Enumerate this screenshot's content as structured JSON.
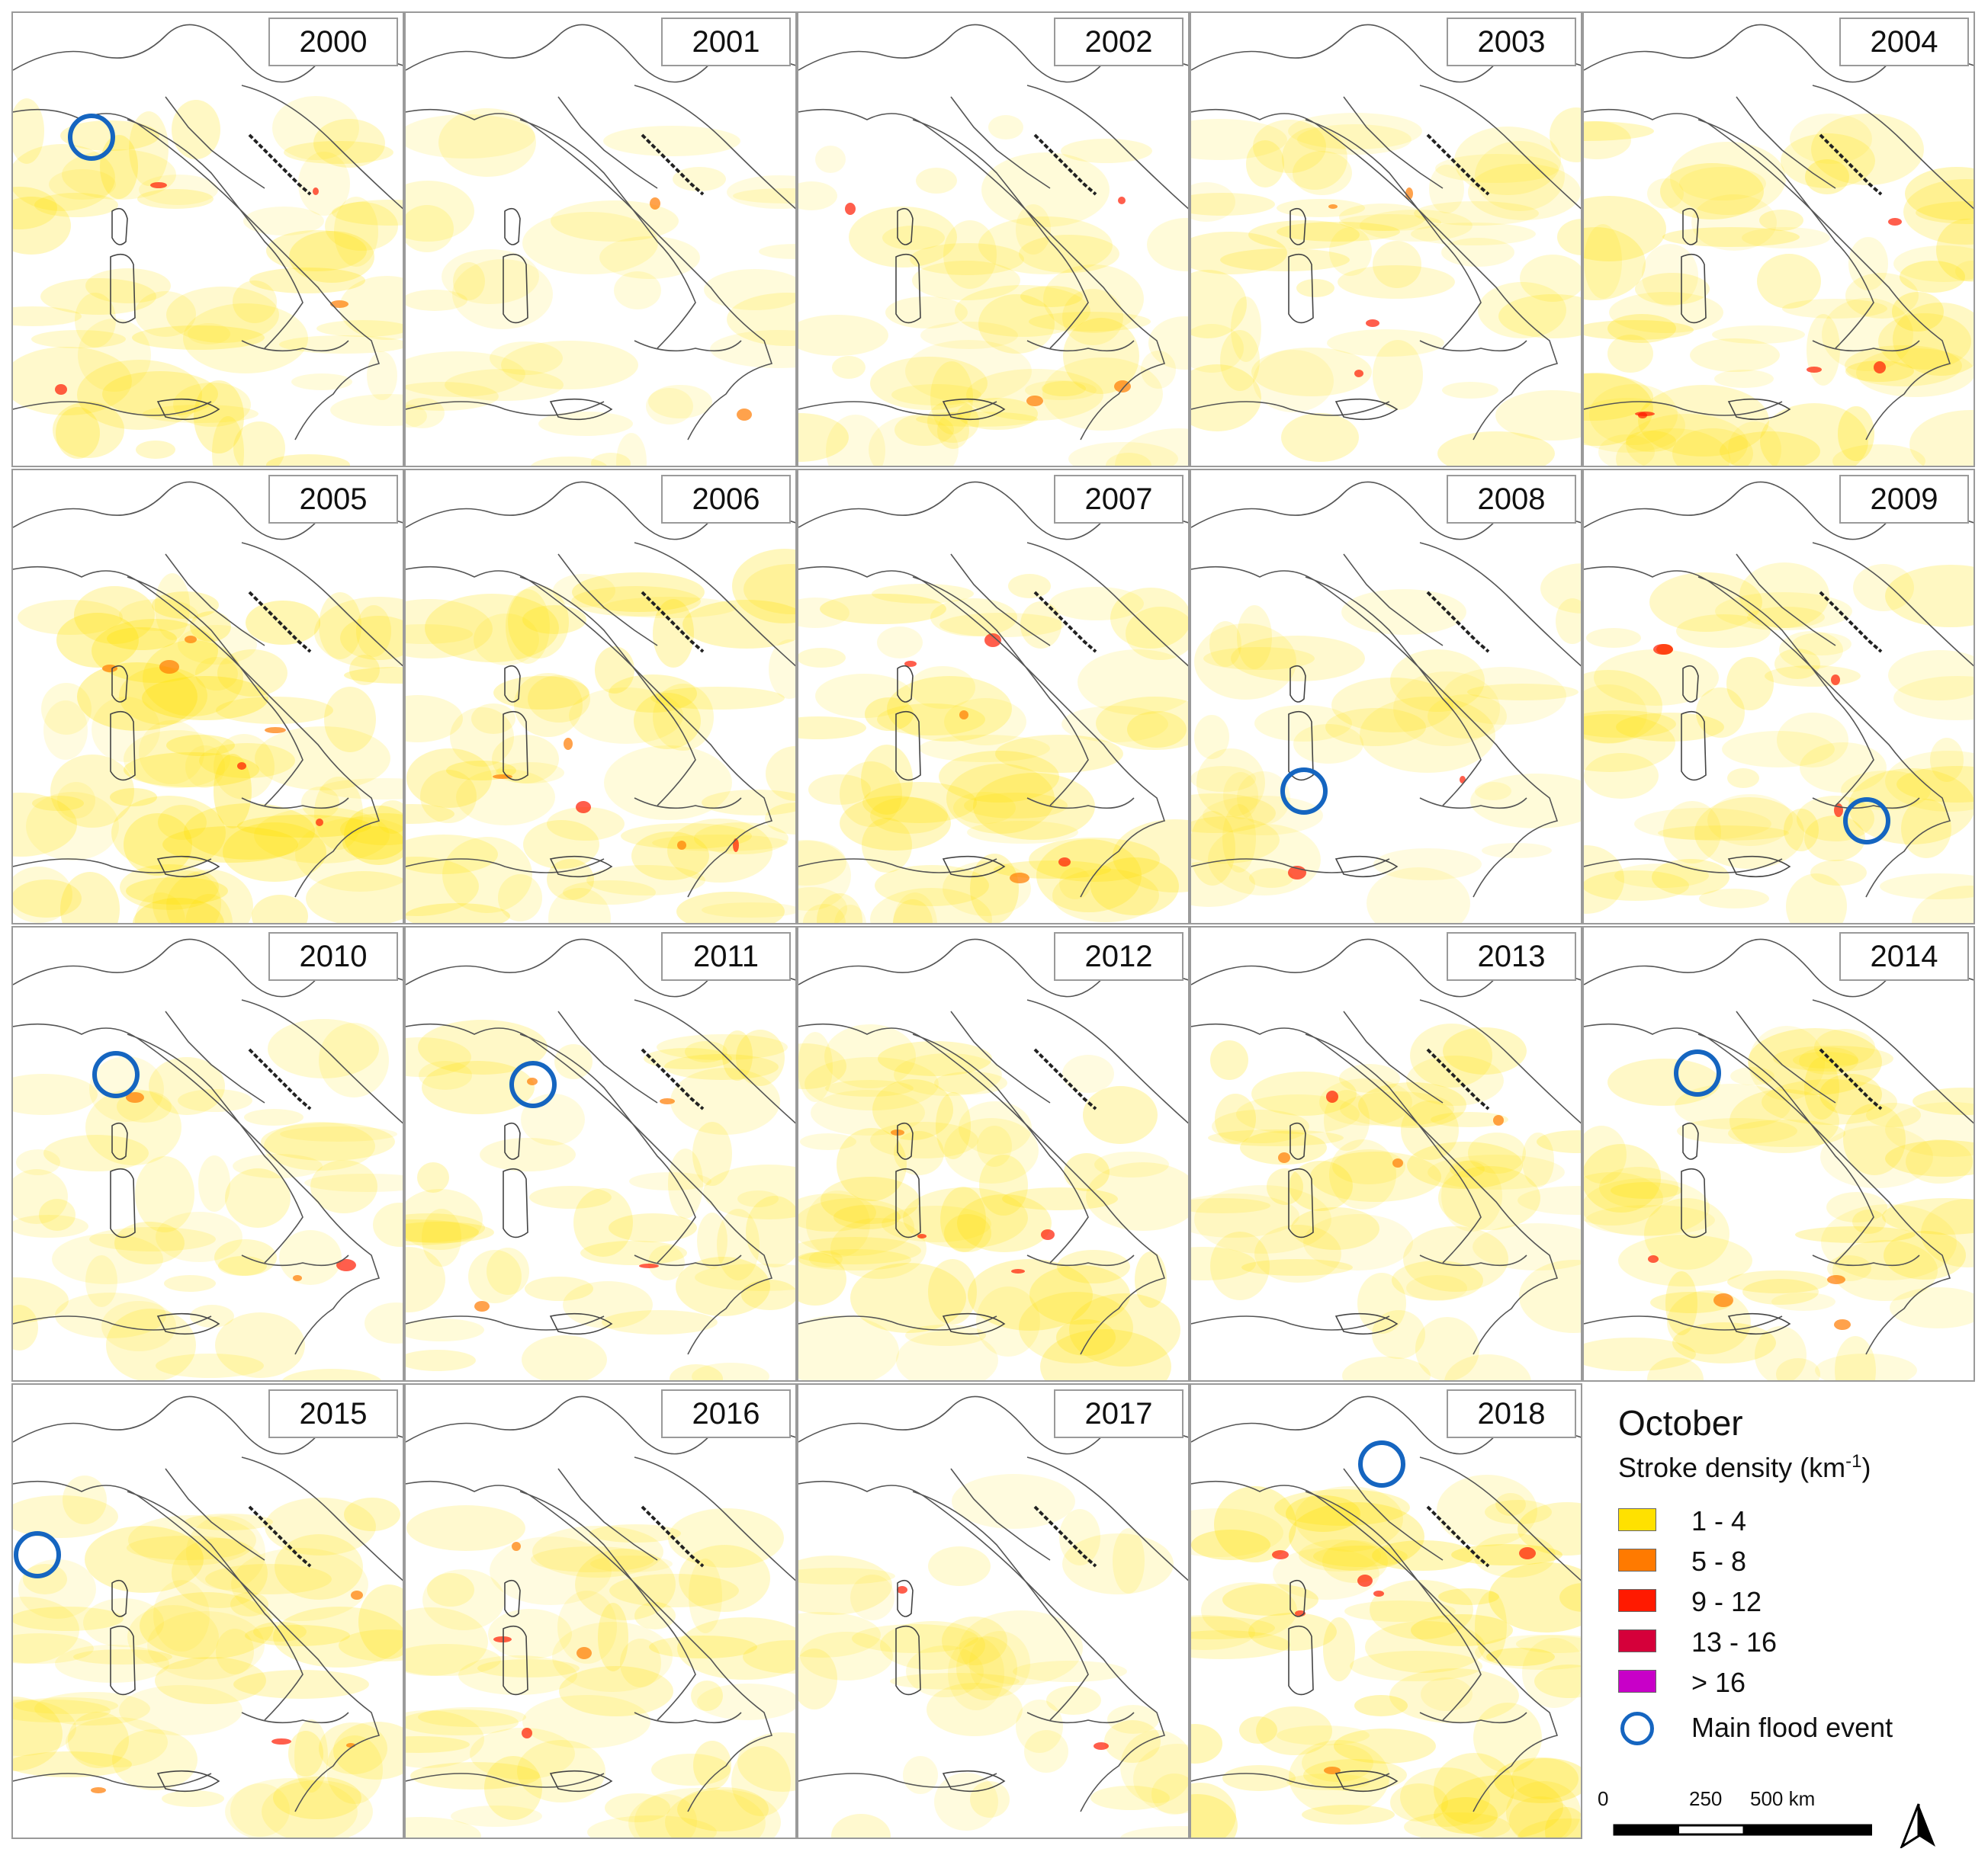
{
  "figure_title": "October",
  "legend": {
    "title": "October",
    "subtitle_prefix": "Stroke density (km",
    "subtitle_sup": "-1",
    "subtitle_suffix": ")",
    "classes": [
      {
        "label": "1 - 4",
        "color": "#ffe100"
      },
      {
        "label": "5 - 8",
        "color": "#ff7a00"
      },
      {
        "label": "9 - 12",
        "color": "#ff1a00"
      },
      {
        "label": "13 - 16",
        "color": "#d5003a"
      },
      {
        "label": "> 16",
        "color": "#c800c8"
      }
    ],
    "flood_label": "Main flood event",
    "flood_color": "#1565c0"
  },
  "scale": {
    "ticks": [
      "0",
      "250",
      "500 km"
    ]
  },
  "north_arrow": "north-arrow",
  "panels": [
    {
      "year": "2000",
      "flood_event": true,
      "intensity": 0.55
    },
    {
      "year": "2001",
      "flood_event": false,
      "intensity": 0.25
    },
    {
      "year": "2002",
      "flood_event": false,
      "intensity": 0.45
    },
    {
      "year": "2003",
      "flood_event": false,
      "intensity": 0.45
    },
    {
      "year": "2004",
      "flood_event": false,
      "intensity": 0.65
    },
    {
      "year": "2005",
      "flood_event": false,
      "intensity": 0.8
    },
    {
      "year": "2006",
      "flood_event": false,
      "intensity": 0.6
    },
    {
      "year": "2007",
      "flood_event": false,
      "intensity": 0.6
    },
    {
      "year": "2008",
      "flood_event": true,
      "intensity": 0.3
    },
    {
      "year": "2009",
      "flood_event": true,
      "intensity": 0.5
    },
    {
      "year": "2010",
      "flood_event": true,
      "intensity": 0.4
    },
    {
      "year": "2011",
      "flood_event": true,
      "intensity": 0.45
    },
    {
      "year": "2012",
      "flood_event": false,
      "intensity": 0.55
    },
    {
      "year": "2013",
      "flood_event": false,
      "intensity": 0.5
    },
    {
      "year": "2014",
      "flood_event": true,
      "intensity": 0.55
    },
    {
      "year": "2015",
      "flood_event": true,
      "intensity": 0.55
    },
    {
      "year": "2016",
      "flood_event": false,
      "intensity": 0.5
    },
    {
      "year": "2017",
      "flood_event": false,
      "intensity": 0.3
    },
    {
      "year": "2018",
      "flood_event": true,
      "intensity": 0.75
    }
  ]
}
